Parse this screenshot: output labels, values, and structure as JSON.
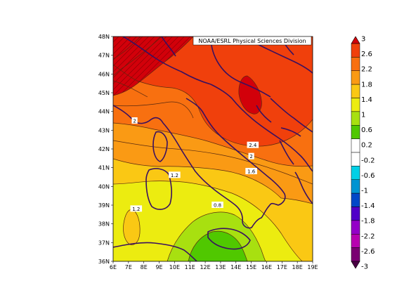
{
  "credit": "NOAA/ESRL Physical Sciences Division",
  "map": {
    "lon_range": [
      6,
      19
    ],
    "lat_range": [
      36,
      48
    ],
    "x_ticks": [
      "6E",
      "7E",
      "8E",
      "9E",
      "10E",
      "11E",
      "12E",
      "13E",
      "14E",
      "15E",
      "16E",
      "17E",
      "18E",
      "19E"
    ],
    "y_ticks": [
      "36N",
      "37N",
      "38N",
      "39N",
      "40N",
      "41N",
      "42N",
      "43N",
      "44N",
      "45N",
      "46N",
      "47N",
      "48N"
    ],
    "contour_labels": [
      {
        "text": "2",
        "lon": 7.4,
        "lat": 43.5
      },
      {
        "text": "2.4",
        "lon": 15.1,
        "lat": 42.2
      },
      {
        "text": "2",
        "lon": 15.0,
        "lat": 41.6
      },
      {
        "text": "1.6",
        "lon": 15.0,
        "lat": 40.8
      },
      {
        "text": "1.2",
        "lon": 10.0,
        "lat": 40.6
      },
      {
        "text": "1.2",
        "lon": 7.5,
        "lat": 38.8
      },
      {
        "text": "0.8",
        "lon": 12.8,
        "lat": 39.0
      }
    ]
  },
  "colorbar": {
    "labels": [
      "3",
      "2.6",
      "2.2",
      "1.8",
      "1.4",
      "1",
      "0.6",
      "0.2",
      "-0.2",
      "-0.6",
      "-1",
      "-1.4",
      "-1.8",
      "-2.2",
      "-2.6",
      "-3"
    ],
    "colors": [
      "#d2000a",
      "#f0400c",
      "#f87010",
      "#fa9a14",
      "#fac814",
      "#ecec10",
      "#a8e010",
      "#50c800",
      "#ffffff",
      "#ffffff",
      "#00d0e6",
      "#0094d2",
      "#0048c8",
      "#5000c8",
      "#9400c8",
      "#b800b0",
      "#7a0072",
      "#4a0044"
    ]
  },
  "field": {
    "colors": {
      "c_gt_26": "#d2000a",
      "c_22_26": "#f0400c",
      "c_18_22": "#f87010",
      "c_14_18": "#fa9a14",
      "c_10_14": "#fac814",
      "c_06_10": "#ecec10",
      "c_02_06": "#a8e010",
      "c_lt_02": "#50c800"
    }
  }
}
